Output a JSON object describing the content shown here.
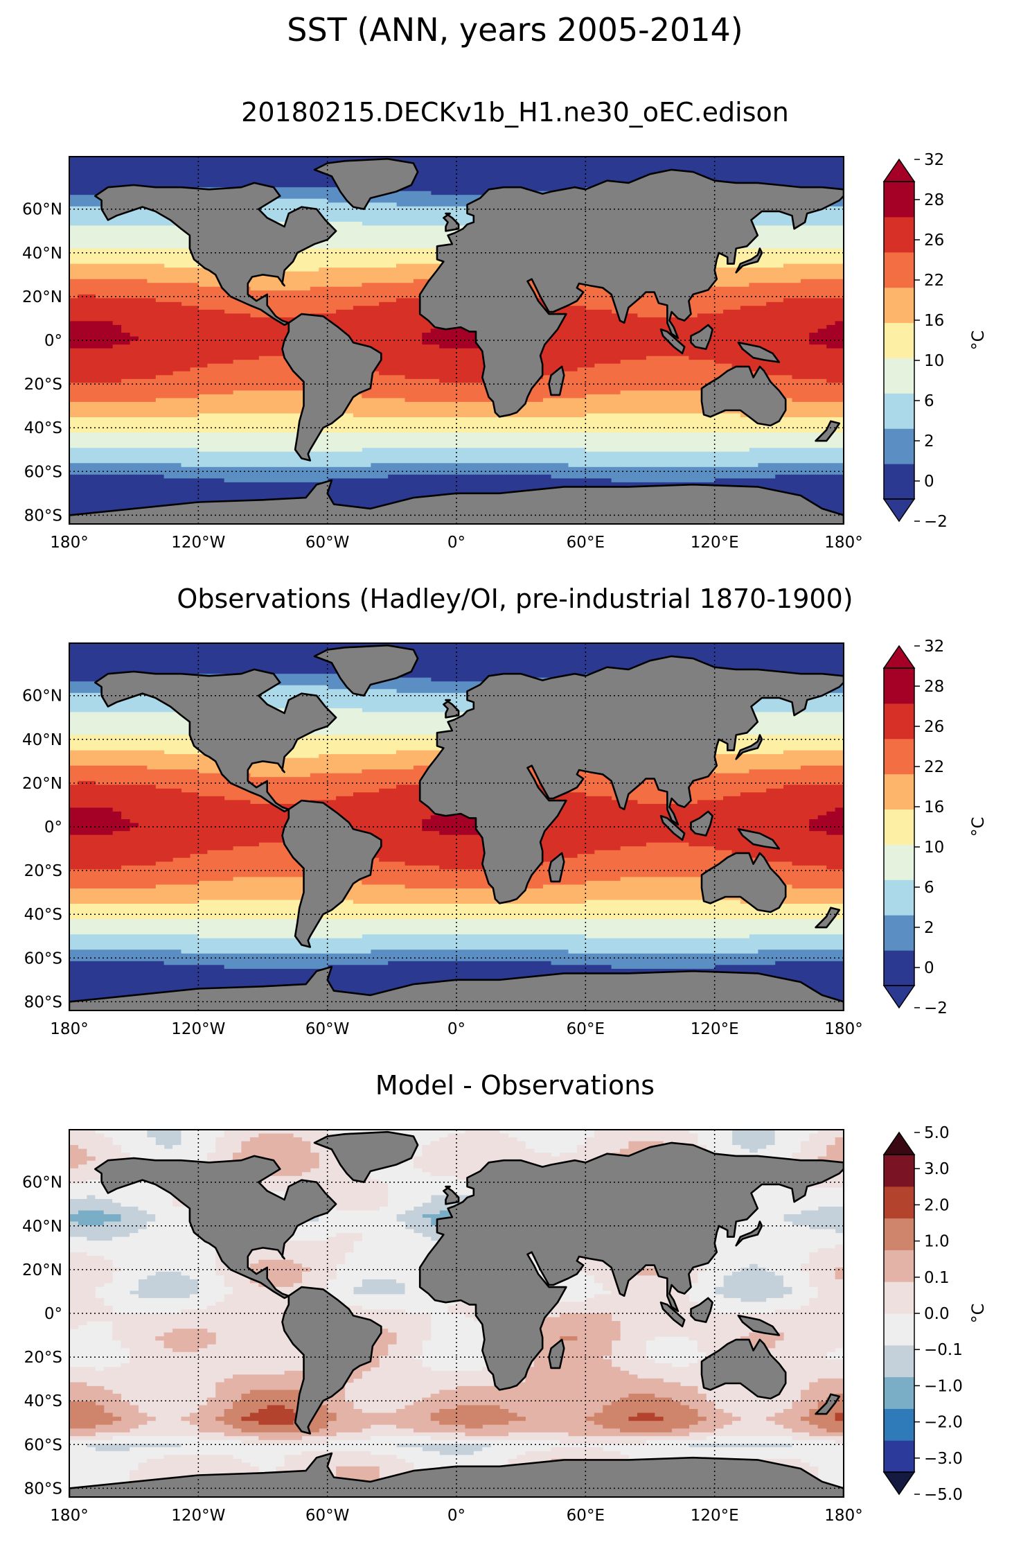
{
  "title": "SST (ANN, years 2005-2014)",
  "panels": [
    {
      "title": "20180215.DECKv1b_H1.ne30_oEC.edison",
      "colorbar": {
        "label": "°C",
        "ticks": [
          "32",
          "28",
          "26",
          "22",
          "16",
          "10",
          "6",
          "2",
          "0",
          "−2"
        ]
      }
    },
    {
      "title": "Observations (Hadley/OI, pre-industrial 1870-1900)",
      "colorbar": {
        "label": "°C",
        "ticks": [
          "32",
          "28",
          "26",
          "22",
          "16",
          "10",
          "6",
          "2",
          "0",
          "−2"
        ]
      }
    },
    {
      "title": "Model - Observations",
      "colorbar": {
        "label": "°C",
        "ticks": [
          "5.0",
          "3.0",
          "2.0",
          "1.0",
          "0.1",
          "0.0",
          "−0.1",
          "−1.0",
          "−2.0",
          "−3.0",
          "−5.0"
        ]
      }
    }
  ],
  "axes": {
    "lat_ticks": [
      "60°N",
      "40°N",
      "20°N",
      "0°",
      "20°S",
      "40°S",
      "60°S",
      "80°S"
    ],
    "lon_ticks": [
      "180°",
      "120°W",
      "60°W",
      "0°",
      "60°E",
      "120°E",
      "180°"
    ]
  },
  "colors": {
    "land": "#808080",
    "sst_levels": [
      "#2b3990",
      "#5b8fc4",
      "#abd9e9",
      "#e4f2de",
      "#fdf0a5",
      "#fdb56b",
      "#f36e43",
      "#d73027",
      "#a50026"
    ],
    "sst_extend": {
      "low": "#2b3990",
      "high": "#a50026"
    },
    "diff_levels": [
      "#2c3a9c",
      "#2f7ab8",
      "#79aec6",
      "#c4d1da",
      "#eeeeee",
      "#efe0e0",
      "#e3b3a8",
      "#cf856c",
      "#b4432e",
      "#7a1425"
    ],
    "diff_extend": {
      "low": "#151a40",
      "high": "#3a0812"
    }
  }
}
